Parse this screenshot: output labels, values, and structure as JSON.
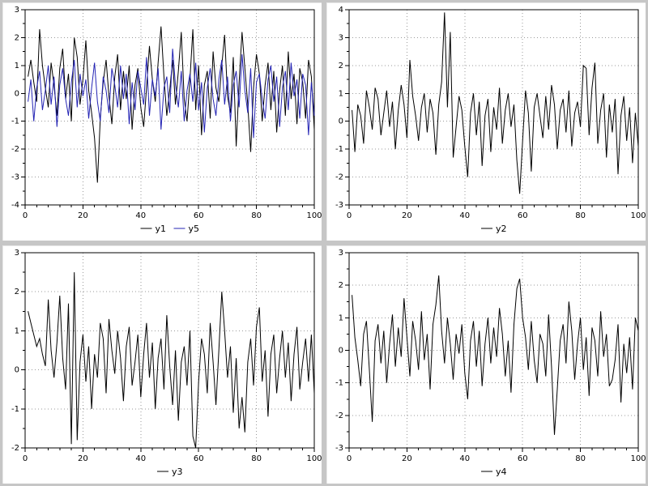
{
  "window": {
    "background": "#c6c6c6",
    "panel_background": "#ffffff",
    "grid_color": "#9a9a9a",
    "axis_color": "#000000"
  },
  "chart_data": [
    {
      "type": "line",
      "title": "",
      "xlabel": "",
      "ylabel": "",
      "x_range": [
        0,
        100
      ],
      "y_range": [
        -4,
        3
      ],
      "x_ticks": [
        0,
        20,
        40,
        60,
        80,
        100
      ],
      "y_ticks": [
        -4,
        -3,
        -2,
        -1,
        0,
        1,
        2,
        3
      ],
      "grid": true,
      "legend_position": "bottom",
      "series": [
        {
          "name": "y1",
          "color": "#000000",
          "x_start": 1,
          "x_end": 100,
          "values": [
            0.6,
            1.2,
            0.4,
            -0.3,
            2.3,
            1.0,
            0.2,
            -0.5,
            1.1,
            0.3,
            -0.8,
            0.9,
            1.6,
            -0.2,
            0.7,
            -1.0,
            2.0,
            1.3,
            -0.4,
            0.5,
            1.9,
            0.1,
            -0.7,
            -1.6,
            -3.2,
            -0.9,
            0.4,
            1.2,
            -0.1,
            -1.1,
            0.6,
            1.4,
            -0.6,
            0.8,
            -0.2,
            1.0,
            -1.3,
            0.3,
            0.9,
            -0.5,
            -1.2,
            0.2,
            1.7,
            0.5,
            -0.3,
            1.1,
            2.4,
            0.6,
            -0.8,
            0.1,
            1.2,
            -0.4,
            0.8,
            2.2,
            -0.2,
            -1.0,
            0.5,
            2.3,
            -0.6,
            1.0,
            -1.5,
            0.3,
            0.8,
            -0.9,
            1.5,
            0.2,
            -0.3,
            1.0,
            2.1,
            -0.1,
            -0.7,
            1.3,
            -1.9,
            0.4,
            2.2,
            0.9,
            -0.4,
            -2.1,
            0.2,
            1.4,
            0.7,
            -1.0,
            0.3,
            1.1,
            -0.6,
            0.8,
            -1.4,
            0.1,
            1.0,
            -0.8,
            1.5,
            -0.2,
            0.7,
            -1.1,
            0.9,
            0.4,
            -0.9,
            1.2,
            0.6,
            -1.3
          ]
        },
        {
          "name": "y5",
          "color": "#2424b4",
          "x_start": 1,
          "x_end": 100,
          "values": [
            -0.3,
            0.5,
            -1.0,
            0.2,
            0.8,
            -0.6,
            0.1,
            1.0,
            -0.4,
            0.6,
            -1.2,
            0.3,
            0.9,
            -0.2,
            -0.8,
            0.4,
            1.2,
            -0.5,
            0.7,
            -0.1,
            0.5,
            -0.9,
            0.2,
            1.1,
            -0.3,
            -1.0,
            0.6,
            0.1,
            -0.7,
            0.9,
            0.3,
            -0.5,
            1.0,
            -0.2,
            0.7,
            -1.1,
            0.4,
            -0.6,
            0.8,
            0.2,
            -0.4,
            1.3,
            -0.8,
            0.5,
            -0.1,
            0.9,
            -1.3,
            0.2,
            0.6,
            -0.7,
            1.6,
            0.3,
            -0.5,
            0.8,
            -1.0,
            0.1,
            0.7,
            -0.3,
            1.1,
            -0.6,
            0.4,
            -1.4,
            0.2,
            0.9,
            -0.2,
            -0.8,
            0.5,
            1.2,
            -0.4,
            0.6,
            -1.0,
            0.3,
            0.8,
            -0.5,
            1.4,
            0.1,
            -0.7,
            0.9,
            -1.6,
            0.4,
            0.7,
            -0.2,
            -0.9,
            0.5,
            1.0,
            -0.3,
            0.6,
            -1.2,
            0.2,
            0.8,
            -0.6,
            1.1,
            -0.1,
            0.5,
            -0.9,
            0.7,
            0.3,
            -1.5,
            0.4,
            -0.8
          ]
        }
      ]
    },
    {
      "type": "line",
      "title": "",
      "xlabel": "",
      "ylabel": "",
      "x_range": [
        0,
        100
      ],
      "y_range": [
        -3,
        4
      ],
      "x_ticks": [
        0,
        20,
        40,
        60,
        80,
        100
      ],
      "y_ticks": [
        -3,
        -2,
        -1,
        0,
        1,
        2,
        3,
        4
      ],
      "grid": true,
      "legend_position": "bottom",
      "series": [
        {
          "name": "y2",
          "color": "#000000",
          "x_start": 1,
          "x_end": 100,
          "values": [
            0.4,
            -1.1,
            0.6,
            0.2,
            -0.8,
            1.1,
            0.5,
            -0.3,
            1.2,
            0.8,
            -0.5,
            0.3,
            1.1,
            -0.2,
            0.7,
            -1.0,
            0.4,
            1.3,
            0.6,
            -0.6,
            2.2,
            0.9,
            0.2,
            -0.7,
            0.5,
            1.0,
            -0.4,
            0.8,
            0.3,
            -1.2,
            0.6,
            1.4,
            3.9,
            0.5,
            3.2,
            -1.3,
            -0.2,
            0.9,
            0.4,
            -0.9,
            -2.0,
            0.3,
            1.0,
            -0.5,
            0.7,
            -1.6,
            0.2,
            0.8,
            -1.1,
            0.5,
            -0.3,
            1.2,
            -0.8,
            0.4,
            1.0,
            -0.2,
            0.6,
            -1.4,
            -2.6,
            -0.7,
            1.1,
            0.3,
            -1.8,
            0.5,
            1.0,
            0.2,
            -0.6,
            0.9,
            -0.3,
            1.3,
            0.6,
            -1.0,
            0.4,
            0.8,
            -0.4,
            1.1,
            -0.9,
            0.3,
            0.7,
            -0.2,
            2.0,
            1.9,
            -0.5,
            1.2,
            2.1,
            -0.8,
            0.4,
            1.0,
            -1.3,
            0.6,
            -0.4,
            0.8,
            -1.9,
            0.2,
            0.9,
            -0.7,
            0.5,
            -1.5,
            0.3,
            -0.9
          ]
        }
      ]
    },
    {
      "type": "line",
      "title": "",
      "xlabel": "",
      "ylabel": "",
      "x_range": [
        0,
        100
      ],
      "y_range": [
        -2,
        3
      ],
      "x_ticks": [
        0,
        20,
        40,
        60,
        80,
        100
      ],
      "y_ticks": [
        -2,
        -1,
        0,
        1,
        2,
        3
      ],
      "grid": true,
      "legend_position": "bottom",
      "series": [
        {
          "name": "y3",
          "color": "#000000",
          "x_start": 1,
          "x_end": 100,
          "values": [
            1.5,
            1.2,
            0.9,
            0.6,
            0.8,
            0.4,
            0.1,
            1.8,
            0.5,
            -0.2,
            0.7,
            1.9,
            0.3,
            -0.5,
            1.7,
            -1.9,
            2.5,
            -1.8,
            0.2,
            0.9,
            -0.3,
            0.6,
            -1.0,
            0.4,
            -0.2,
            1.2,
            0.8,
            -0.6,
            1.3,
            0.5,
            -0.1,
            1.0,
            0.3,
            -0.8,
            0.6,
            1.1,
            -0.4,
            0.2,
            0.9,
            -0.7,
            0.4,
            1.2,
            -0.2,
            0.7,
            -1.0,
            0.3,
            0.8,
            -0.5,
            1.4,
            0.1,
            -0.9,
            0.5,
            -1.3,
            0.2,
            0.6,
            -0.4,
            1.0,
            -1.7,
            -2.0,
            -0.3,
            0.8,
            0.4,
            -0.6,
            1.2,
            0.2,
            -0.9,
            0.5,
            2.0,
            1.0,
            -0.2,
            0.6,
            -1.1,
            0.3,
            -1.5,
            -0.7,
            -1.6,
            0.2,
            0.8,
            -0.4,
            1.1,
            1.6,
            -0.3,
            0.5,
            -1.2,
            0.4,
            0.9,
            -0.6,
            0.3,
            1.0,
            -0.2,
            0.7,
            -0.8,
            0.4,
            1.1,
            -0.5,
            0.2,
            0.8,
            -0.3,
            0.9,
            -0.6
          ]
        }
      ]
    },
    {
      "type": "line",
      "title": "",
      "xlabel": "",
      "ylabel": "",
      "x_range": [
        0,
        100
      ],
      "y_range": [
        -3,
        3
      ],
      "x_ticks": [
        0,
        20,
        40,
        60,
        80,
        100
      ],
      "y_ticks": [
        -3,
        -2,
        -1,
        0,
        1,
        2,
        3
      ],
      "grid": true,
      "legend_position": "bottom",
      "series": [
        {
          "name": "y4",
          "color": "#000000",
          "x_start": 1,
          "x_end": 100,
          "values": [
            1.7,
            0.4,
            -0.3,
            -1.1,
            0.5,
            0.9,
            -0.6,
            -2.2,
            0.3,
            0.8,
            -0.4,
            0.6,
            -1.0,
            0.2,
            1.1,
            -0.5,
            0.7,
            -0.2,
            1.6,
            0.4,
            -0.8,
            0.9,
            0.3,
            -0.6,
            1.2,
            -0.3,
            0.5,
            -1.2,
            0.8,
            1.4,
            2.3,
            0.6,
            -0.4,
            1.0,
            0.2,
            -0.9,
            0.5,
            -0.1,
            0.8,
            -0.7,
            -1.5,
            0.3,
            0.9,
            -0.5,
            0.6,
            -1.1,
            0.2,
            1.0,
            -0.4,
            0.7,
            -0.2,
            1.3,
            0.5,
            -0.8,
            0.3,
            -1.3,
            0.8,
            1.9,
            2.2,
            1.0,
            0.4,
            -0.6,
            0.9,
            -0.3,
            -1.0,
            0.5,
            0.2,
            -0.8,
            1.1,
            -0.5,
            -2.6,
            -1.2,
            0.3,
            0.8,
            -0.4,
            1.5,
            0.6,
            -0.9,
            0.2,
            1.0,
            -0.6,
            0.4,
            -1.4,
            0.7,
            0.3,
            -0.8,
            1.2,
            -0.2,
            0.5,
            -1.1,
            -0.9,
            -0.3,
            0.8,
            -1.6,
            0.2,
            -0.7,
            0.4,
            -1.2,
            1.0,
            0.6
          ]
        }
      ]
    }
  ]
}
